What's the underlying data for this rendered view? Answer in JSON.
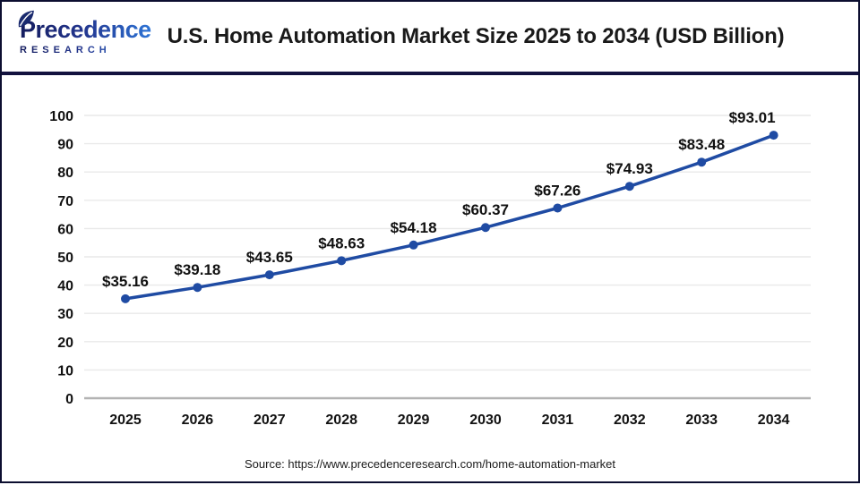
{
  "header": {
    "logo": {
      "brand": "Precedence",
      "sub": "RESEARCH"
    },
    "title": "U.S. Home Automation Market Size 2025 to 2034 (USD Billion)"
  },
  "chart_data": {
    "type": "line",
    "title": "U.S. Home Automation Market Size 2025 to 2034 (USD Billion)",
    "x": [
      2025,
      2026,
      2027,
      2028,
      2029,
      2030,
      2031,
      2032,
      2033,
      2034
    ],
    "values": [
      35.16,
      39.18,
      43.65,
      48.63,
      54.18,
      60.37,
      67.26,
      74.93,
      83.48,
      93.01
    ],
    "labels": [
      "$35.16",
      "$39.18",
      "$43.65",
      "$48.63",
      "$54.18",
      "$60.37",
      "$67.26",
      "$74.93",
      "$83.48",
      "$93.01"
    ],
    "xlabel": "",
    "ylabel": "",
    "ylim": [
      0,
      100
    ],
    "ytick_step": 10,
    "grid": true,
    "legend": "none",
    "line_color": "#1f4ba3",
    "marker_color": "#1f4ba3",
    "tick_color": "#111111",
    "data_label_color": "#111111",
    "grid_color": "#e9e9e9",
    "axis_color": "#b3b3b3"
  },
  "footer": {
    "source": "Source: https://www.precedenceresearch.com/home-automation-market"
  }
}
